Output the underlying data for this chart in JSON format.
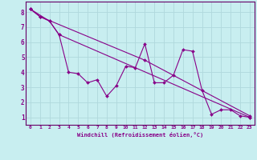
{
  "xlabel": "Windchill (Refroidissement éolien,°C)",
  "background_color": "#c8eef0",
  "grid_color": "#b0d8dc",
  "line_color": "#880088",
  "spine_color": "#660066",
  "xlim": [
    -0.5,
    23.5
  ],
  "ylim": [
    0.5,
    8.7
  ],
  "xticks": [
    0,
    1,
    2,
    3,
    4,
    5,
    6,
    7,
    8,
    9,
    10,
    11,
    12,
    13,
    14,
    15,
    16,
    17,
    18,
    19,
    20,
    21,
    22,
    23
  ],
  "yticks": [
    1,
    2,
    3,
    4,
    5,
    6,
    7,
    8
  ],
  "line1_x": [
    0,
    1,
    2,
    3,
    4,
    5,
    6,
    7,
    8,
    9,
    10,
    11,
    12,
    13,
    14,
    15,
    16,
    17,
    18,
    19,
    20,
    21,
    22,
    23
  ],
  "line1_y": [
    8.2,
    7.7,
    7.4,
    6.5,
    4.0,
    3.9,
    3.3,
    3.5,
    2.4,
    3.1,
    4.4,
    4.3,
    5.9,
    3.3,
    3.3,
    3.8,
    5.5,
    5.4,
    2.8,
    1.2,
    1.5,
    1.5,
    1.1,
    1.0
  ],
  "line2_x": [
    0,
    2,
    3,
    23
  ],
  "line2_y": [
    8.2,
    7.4,
    6.5,
    1.0
  ],
  "line3_x": [
    0,
    1,
    12,
    23
  ],
  "line3_y": [
    8.2,
    7.7,
    4.8,
    1.1
  ]
}
